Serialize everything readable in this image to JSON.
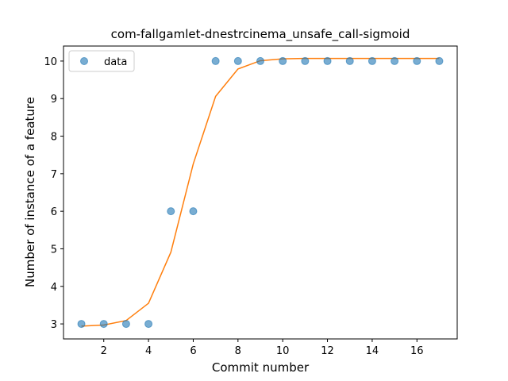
{
  "chart_data": {
    "type": "scatter",
    "title": "com-fallgamlet-dnestrcinema_unsafe_call-sigmoid",
    "xlabel": "Commit number",
    "ylabel": "Number of instance of a feature",
    "xlim": [
      0.2,
      17.8
    ],
    "ylim": [
      2.6,
      10.4
    ],
    "xticks": [
      2,
      4,
      6,
      8,
      10,
      12,
      14,
      16
    ],
    "yticks": [
      3,
      4,
      5,
      6,
      7,
      8,
      9,
      10
    ],
    "grid": false,
    "legend_position": "top-left",
    "series": [
      {
        "name": "data",
        "kind": "scatter",
        "color": "#1f77b4",
        "x": [
          1,
          2,
          3,
          4,
          5,
          6,
          7,
          8,
          9,
          10,
          11,
          12,
          13,
          14,
          15,
          16,
          17
        ],
        "y": [
          3,
          3,
          3,
          3,
          6,
          6,
          10,
          10,
          10,
          10,
          10,
          10,
          10,
          10,
          10,
          10,
          10
        ]
      },
      {
        "name": "",
        "kind": "line",
        "color": "#ff7f0e",
        "x": [
          1,
          2,
          3,
          4,
          5,
          6,
          7,
          8,
          9,
          10,
          11,
          12,
          13,
          14,
          15,
          16,
          17
        ],
        "y": [
          2.94,
          2.97,
          3.09,
          3.55,
          4.91,
          7.26,
          9.06,
          9.79,
          10.01,
          10.06,
          10.07,
          10.07,
          10.07,
          10.07,
          10.07,
          10.07,
          10.07
        ]
      }
    ]
  }
}
